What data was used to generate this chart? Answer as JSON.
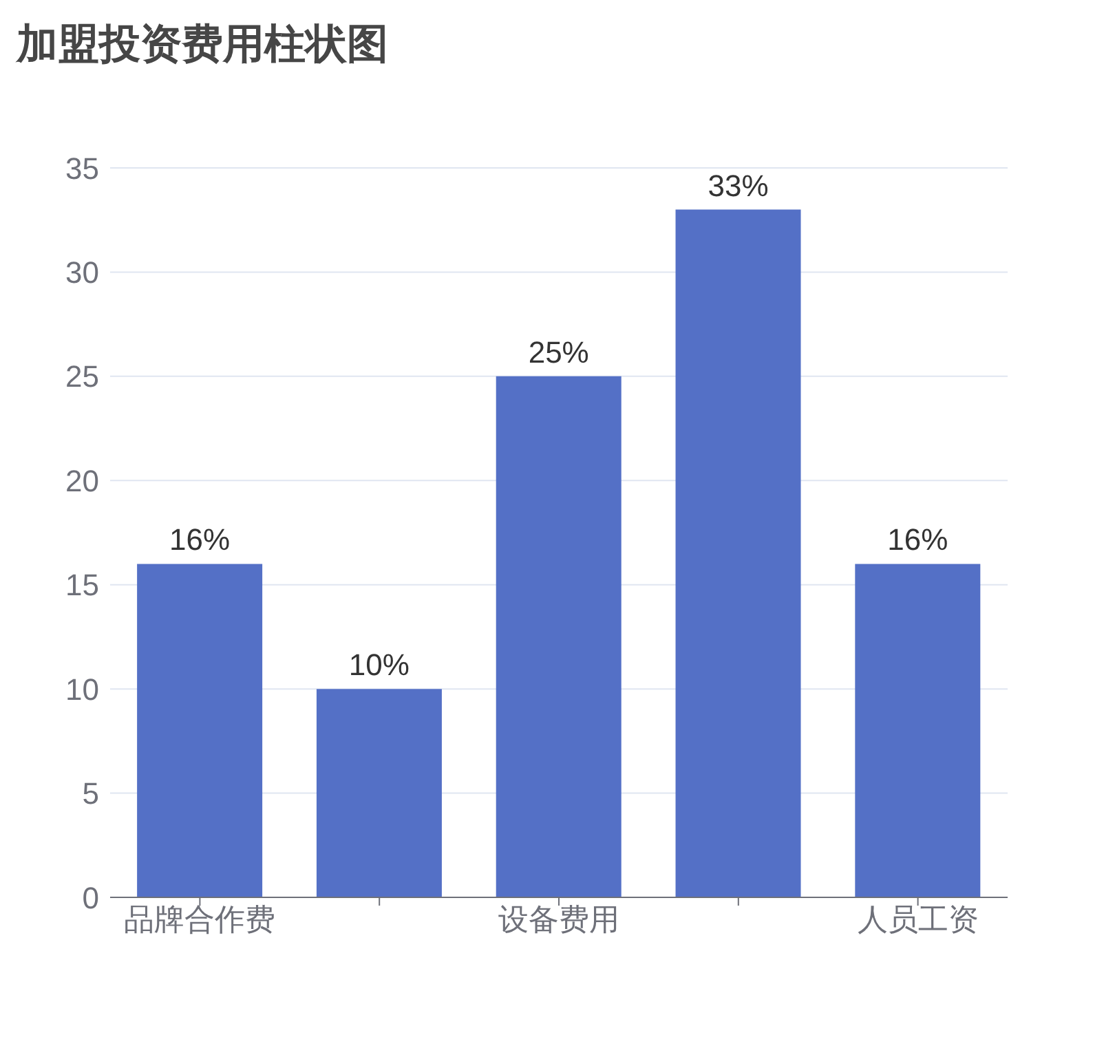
{
  "chart_data": {
    "type": "bar",
    "title": "加盟投资费用柱状图",
    "categories": [
      "品牌合作费",
      null,
      "设备费用",
      null,
      "人员工资"
    ],
    "values": [
      16,
      10,
      25,
      33,
      16
    ],
    "value_labels": [
      "16%",
      "10%",
      "25%",
      "33%",
      "16%"
    ],
    "color": "#5470c6",
    "ylim": [
      0,
      35
    ],
    "yticks": [
      0,
      5,
      10,
      15,
      20,
      25,
      30,
      35
    ],
    "grid": "y"
  }
}
